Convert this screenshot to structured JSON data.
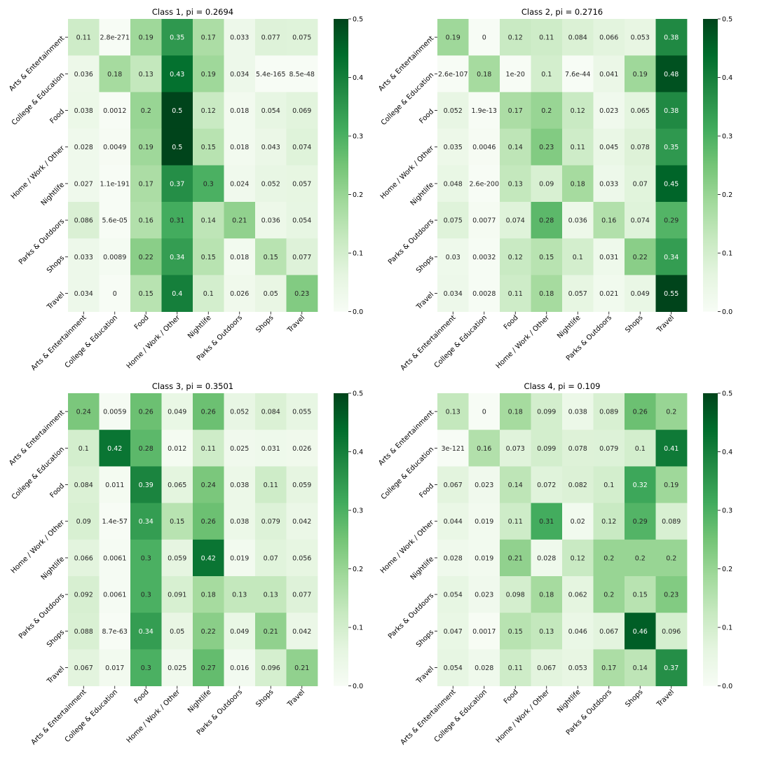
{
  "chart_data": [
    {
      "type": "heatmap",
      "title": "Class 1, pi = 0.2694",
      "rows": [
        "Arts & Entertainment",
        "College & Education",
        "Food",
        "Home / Work / Other",
        "Nightlife",
        "Parks & Outdoors",
        "Shops",
        "Travel"
      ],
      "cols": [
        "Arts & Entertainment",
        "College & Education",
        "Food",
        "Home / Work / Other",
        "Nightlife",
        "Parks & Outdoors",
        "Shops",
        "Travel"
      ],
      "values": [
        [
          0.11,
          2.8e-271,
          0.19,
          0.35,
          0.17,
          0.033,
          0.077,
          0.075
        ],
        [
          0.036,
          0.18,
          0.13,
          0.43,
          0.19,
          0.034,
          5.4e-165,
          8.5e-48
        ],
        [
          0.038,
          0.0012,
          0.2,
          0.5,
          0.12,
          0.018,
          0.054,
          0.069
        ],
        [
          0.028,
          0.0049,
          0.19,
          0.5,
          0.15,
          0.018,
          0.043,
          0.074
        ],
        [
          0.027,
          1.1e-191,
          0.17,
          0.37,
          0.3,
          0.024,
          0.052,
          0.057
        ],
        [
          0.086,
          5.6e-05,
          0.16,
          0.31,
          0.14,
          0.21,
          0.036,
          0.054
        ],
        [
          0.033,
          0.0089,
          0.22,
          0.34,
          0.15,
          0.018,
          0.15,
          0.077
        ],
        [
          0.034,
          0,
          0.15,
          0.4,
          0.1,
          0.026,
          0.05,
          0.23
        ]
      ],
      "labels": [
        [
          "0.11",
          "2.8e-271",
          "0.19",
          "0.35",
          "0.17",
          "0.033",
          "0.077",
          "0.075"
        ],
        [
          "0.036",
          "0.18",
          "0.13",
          "0.43",
          "0.19",
          "0.034",
          "5.4e-165",
          "8.5e-48"
        ],
        [
          "0.038",
          "0.0012",
          "0.2",
          "0.5",
          "0.12",
          "0.018",
          "0.054",
          "0.069"
        ],
        [
          "0.028",
          "0.0049",
          "0.19",
          "0.5",
          "0.15",
          "0.018",
          "0.043",
          "0.074"
        ],
        [
          "0.027",
          "1.1e-191",
          "0.17",
          "0.37",
          "0.3",
          "0.024",
          "0.052",
          "0.057"
        ],
        [
          "0.086",
          "5.6e-05",
          "0.16",
          "0.31",
          "0.14",
          "0.21",
          "0.036",
          "0.054"
        ],
        [
          "0.033",
          "0.0089",
          "0.22",
          "0.34",
          "0.15",
          "0.018",
          "0.15",
          "0.077"
        ],
        [
          "0.034",
          "0",
          "0.15",
          "0.4",
          "0.1",
          "0.026",
          "0.05",
          "0.23"
        ]
      ],
      "vmin": 0,
      "vmax": 0.5,
      "colorbar_ticks": [
        "0.0",
        "0.1",
        "0.2",
        "0.3",
        "0.4",
        "0.5"
      ],
      "colormap": "Greens"
    },
    {
      "type": "heatmap",
      "title": "Class 2, pi = 0.2716",
      "rows": [
        "Arts & Entertainment",
        "College & Education",
        "Food",
        "Home / Work / Other",
        "Nightlife",
        "Parks & Outdoors",
        "Shops",
        "Travel"
      ],
      "cols": [
        "Arts & Entertainment",
        "College & Education",
        "Food",
        "Home / Work / Other",
        "Nightlife",
        "Parks & Outdoors",
        "Shops",
        "Travel"
      ],
      "values": [
        [
          0.19,
          0,
          0.12,
          0.11,
          0.084,
          0.066,
          0.053,
          0.38
        ],
        [
          2.6e-107,
          0.18,
          1e-20,
          0.1,
          7.6e-44,
          0.041,
          0.19,
          0.48
        ],
        [
          0.052,
          1.9e-13,
          0.17,
          0.2,
          0.12,
          0.023,
          0.065,
          0.38
        ],
        [
          0.035,
          0.0046,
          0.14,
          0.23,
          0.11,
          0.045,
          0.078,
          0.35
        ],
        [
          0.048,
          2.6e-200,
          0.13,
          0.09,
          0.18,
          0.033,
          0.07,
          0.45
        ],
        [
          0.075,
          0.0077,
          0.074,
          0.28,
          0.036,
          0.16,
          0.074,
          0.29
        ],
        [
          0.03,
          0.0032,
          0.12,
          0.15,
          0.1,
          0.031,
          0.22,
          0.34
        ],
        [
          0.034,
          0.0028,
          0.11,
          0.18,
          0.057,
          0.021,
          0.049,
          0.55
        ]
      ],
      "labels": [
        [
          "0.19",
          "0",
          "0.12",
          "0.11",
          "0.084",
          "0.066",
          "0.053",
          "0.38"
        ],
        [
          "2.6e-107",
          "0.18",
          "1e-20",
          "0.1",
          "7.6e-44",
          "0.041",
          "0.19",
          "0.48"
        ],
        [
          "0.052",
          "1.9e-13",
          "0.17",
          "0.2",
          "0.12",
          "0.023",
          "0.065",
          "0.38"
        ],
        [
          "0.035",
          "0.0046",
          "0.14",
          "0.23",
          "0.11",
          "0.045",
          "0.078",
          "0.35"
        ],
        [
          "0.048",
          "2.6e-200",
          "0.13",
          "0.09",
          "0.18",
          "0.033",
          "0.07",
          "0.45"
        ],
        [
          "0.075",
          "0.0077",
          "0.074",
          "0.28",
          "0.036",
          "0.16",
          "0.074",
          "0.29"
        ],
        [
          "0.03",
          "0.0032",
          "0.12",
          "0.15",
          "0.1",
          "0.031",
          "0.22",
          "0.34"
        ],
        [
          "0.034",
          "0.0028",
          "0.11",
          "0.18",
          "0.057",
          "0.021",
          "0.049",
          "0.55"
        ]
      ],
      "vmin": 0,
      "vmax": 0.5,
      "colorbar_ticks": [
        "0.0",
        "0.1",
        "0.2",
        "0.3",
        "0.4",
        "0.5"
      ],
      "colormap": "Greens"
    },
    {
      "type": "heatmap",
      "title": "Class 3, pi = 0.3501",
      "rows": [
        "Arts & Entertainment",
        "College & Education",
        "Food",
        "Home / Work / Other",
        "Nightlife",
        "Parks & Outdoors",
        "Shops",
        "Travel"
      ],
      "cols": [
        "Arts & Entertainment",
        "College & Education",
        "Food",
        "Home / Work / Other",
        "Nightlife",
        "Parks & Outdoors",
        "Shops",
        "Travel"
      ],
      "values": [
        [
          0.24,
          0.0059,
          0.26,
          0.049,
          0.26,
          0.052,
          0.084,
          0.055
        ],
        [
          0.1,
          0.42,
          0.28,
          0.012,
          0.11,
          0.025,
          0.031,
          0.026
        ],
        [
          0.084,
          0.011,
          0.39,
          0.065,
          0.24,
          0.038,
          0.11,
          0.059
        ],
        [
          0.09,
          1.4e-57,
          0.34,
          0.15,
          0.26,
          0.038,
          0.079,
          0.042
        ],
        [
          0.066,
          0.0061,
          0.3,
          0.059,
          0.42,
          0.019,
          0.07,
          0.056
        ],
        [
          0.092,
          0.0061,
          0.3,
          0.091,
          0.18,
          0.13,
          0.13,
          0.077
        ],
        [
          0.088,
          8.7e-63,
          0.34,
          0.05,
          0.22,
          0.049,
          0.21,
          0.042
        ],
        [
          0.067,
          0.017,
          0.3,
          0.025,
          0.27,
          0.016,
          0.096,
          0.21
        ]
      ],
      "labels": [
        [
          "0.24",
          "0.0059",
          "0.26",
          "0.049",
          "0.26",
          "0.052",
          "0.084",
          "0.055"
        ],
        [
          "0.1",
          "0.42",
          "0.28",
          "0.012",
          "0.11",
          "0.025",
          "0.031",
          "0.026"
        ],
        [
          "0.084",
          "0.011",
          "0.39",
          "0.065",
          "0.24",
          "0.038",
          "0.11",
          "0.059"
        ],
        [
          "0.09",
          "1.4e-57",
          "0.34",
          "0.15",
          "0.26",
          "0.038",
          "0.079",
          "0.042"
        ],
        [
          "0.066",
          "0.0061",
          "0.3",
          "0.059",
          "0.42",
          "0.019",
          "0.07",
          "0.056"
        ],
        [
          "0.092",
          "0.0061",
          "0.3",
          "0.091",
          "0.18",
          "0.13",
          "0.13",
          "0.077"
        ],
        [
          "0.088",
          "8.7e-63",
          "0.34",
          "0.05",
          "0.22",
          "0.049",
          "0.21",
          "0.042"
        ],
        [
          "0.067",
          "0.017",
          "0.3",
          "0.025",
          "0.27",
          "0.016",
          "0.096",
          "0.21"
        ]
      ],
      "vmin": 0,
      "vmax": 0.5,
      "colorbar_ticks": [
        "0.0",
        "0.1",
        "0.2",
        "0.3",
        "0.4",
        "0.5"
      ],
      "colormap": "Greens"
    },
    {
      "type": "heatmap",
      "title": "Class 4, pi = 0.109",
      "rows": [
        "Arts & Entertainment",
        "College & Education",
        "Food",
        "Home / Work / Other",
        "Nightlife",
        "Parks & Outdoors",
        "Shops",
        "Travel"
      ],
      "cols": [
        "Arts & Entertainment",
        "College & Education",
        "Food",
        "Home / Work / Other",
        "Nightlife",
        "Parks & Outdoors",
        "Shops",
        "Travel"
      ],
      "values": [
        [
          0.13,
          0,
          0.18,
          0.099,
          0.038,
          0.089,
          0.26,
          0.2
        ],
        [
          3e-121,
          0.16,
          0.073,
          0.099,
          0.078,
          0.079,
          0.1,
          0.41
        ],
        [
          0.067,
          0.023,
          0.14,
          0.072,
          0.082,
          0.1,
          0.32,
          0.19
        ],
        [
          0.044,
          0.019,
          0.11,
          0.31,
          0.02,
          0.12,
          0.29,
          0.089
        ],
        [
          0.028,
          0.019,
          0.21,
          0.028,
          0.12,
          0.2,
          0.2,
          0.2
        ],
        [
          0.054,
          0.023,
          0.098,
          0.18,
          0.062,
          0.2,
          0.15,
          0.23
        ],
        [
          0.047,
          0.0017,
          0.15,
          0.13,
          0.046,
          0.067,
          0.46,
          0.096
        ],
        [
          0.054,
          0.028,
          0.11,
          0.067,
          0.053,
          0.17,
          0.14,
          0.37
        ]
      ],
      "labels": [
        [
          "0.13",
          "0",
          "0.18",
          "0.099",
          "0.038",
          "0.089",
          "0.26",
          "0.2"
        ],
        [
          "3e-121",
          "0.16",
          "0.073",
          "0.099",
          "0.078",
          "0.079",
          "0.1",
          "0.41"
        ],
        [
          "0.067",
          "0.023",
          "0.14",
          "0.072",
          "0.082",
          "0.1",
          "0.32",
          "0.19"
        ],
        [
          "0.044",
          "0.019",
          "0.11",
          "0.31",
          "0.02",
          "0.12",
          "0.29",
          "0.089"
        ],
        [
          "0.028",
          "0.019",
          "0.21",
          "0.028",
          "0.12",
          "0.2",
          "0.2",
          "0.2"
        ],
        [
          "0.054",
          "0.023",
          "0.098",
          "0.18",
          "0.062",
          "0.2",
          "0.15",
          "0.23"
        ],
        [
          "0.047",
          "0.0017",
          "0.15",
          "0.13",
          "0.046",
          "0.067",
          "0.46",
          "0.096"
        ],
        [
          "0.054",
          "0.028",
          "0.11",
          "0.067",
          "0.053",
          "0.17",
          "0.14",
          "0.37"
        ]
      ],
      "vmin": 0,
      "vmax": 0.5,
      "colorbar_ticks": [
        "0.0",
        "0.1",
        "0.2",
        "0.3",
        "0.4",
        "0.5"
      ],
      "colormap": "Greens"
    }
  ]
}
